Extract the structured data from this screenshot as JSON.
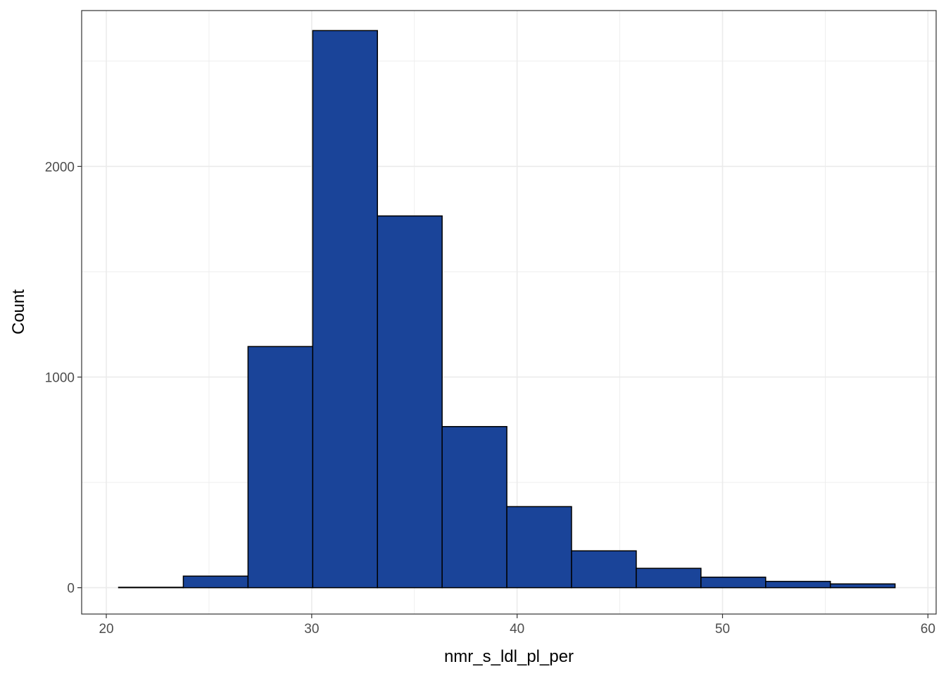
{
  "chart_data": {
    "type": "bar",
    "subtype": "histogram",
    "title": "",
    "xlabel": "nmr_s_ldl_pl_per",
    "ylabel": "Count",
    "xlim": [
      18.8,
      60.4
    ],
    "ylim": [
      -125,
      2740
    ],
    "x_ticks": [
      20,
      30,
      40,
      50,
      60
    ],
    "x_tick_labels": [
      "20",
      "30",
      "40",
      "50",
      "60"
    ],
    "y_ticks": [
      0,
      1000,
      2000
    ],
    "y_tick_labels": [
      "0",
      "1000",
      "2000"
    ],
    "y_minor_ticks": [
      500,
      1500,
      2500
    ],
    "grid": true,
    "bar_fill": "#1a4499",
    "bar_outline": "#000000",
    "bins": [
      {
        "x0": 20.6,
        "x1": 23.75,
        "count": 2
      },
      {
        "x0": 23.75,
        "x1": 26.9,
        "count": 55
      },
      {
        "x0": 26.9,
        "x1": 30.05,
        "count": 1145
      },
      {
        "x0": 30.05,
        "x1": 33.2,
        "count": 2645
      },
      {
        "x0": 33.2,
        "x1": 36.35,
        "count": 1765
      },
      {
        "x0": 36.35,
        "x1": 39.5,
        "count": 765
      },
      {
        "x0": 39.5,
        "x1": 42.65,
        "count": 385
      },
      {
        "x0": 42.65,
        "x1": 45.8,
        "count": 175
      },
      {
        "x0": 45.8,
        "x1": 48.95,
        "count": 92
      },
      {
        "x0": 48.95,
        "x1": 52.1,
        "count": 50
      },
      {
        "x0": 52.1,
        "x1": 55.25,
        "count": 30
      },
      {
        "x0": 55.25,
        "x1": 58.4,
        "count": 18
      }
    ]
  }
}
